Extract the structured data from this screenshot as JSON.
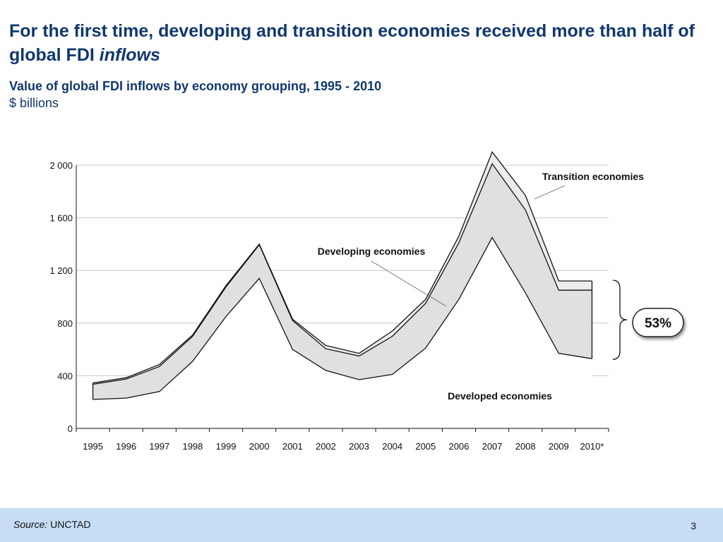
{
  "slide": {
    "title_main": "For the first time, developing and transition economies received more than half of global FDI ",
    "title_emph": "inflows",
    "subtitle": "Value of global FDI inflows by economy grouping, 1995 - 2010",
    "unit": "$ billions"
  },
  "footer": {
    "source_label": "Source:",
    "source_text": " UNCTAD",
    "page_number": "3"
  },
  "chart_data": {
    "type": "area",
    "stacked": true,
    "categories": [
      "1995",
      "1996",
      "1997",
      "1998",
      "1999",
      "2000",
      "2001",
      "2002",
      "2003",
      "2004",
      "2005",
      "2006",
      "2007",
      "2008",
      "2009",
      "2010*"
    ],
    "ylim": [
      0,
      2000
    ],
    "yticks": [
      0,
      400,
      800,
      1200,
      1600,
      2000
    ],
    "ytick_labels": [
      "0",
      "400",
      "800",
      "1 200",
      "1 600",
      "2 000"
    ],
    "grid": true,
    "series": [
      {
        "name": "Developed economies",
        "values": [
          220,
          230,
          280,
          510,
          850,
          1140,
          600,
          440,
          370,
          410,
          610,
          980,
          1450,
          1030,
          570,
          530
        ],
        "color": "#ffffff"
      },
      {
        "name": "Developing economies",
        "values": [
          115,
          145,
          190,
          190,
          225,
          255,
          220,
          165,
          180,
          290,
          340,
          430,
          560,
          630,
          480,
          520
        ],
        "color": "#e0e0e0"
      },
      {
        "name": "Transition economies",
        "values": [
          10,
          10,
          15,
          10,
          10,
          5,
          10,
          25,
          20,
          40,
          30,
          50,
          90,
          110,
          70,
          70
        ],
        "color": "#ececec"
      }
    ],
    "annotations": [
      {
        "text": "Developing economies"
      },
      {
        "text": "Transition economies"
      },
      {
        "text": "Developed economies"
      }
    ],
    "callout": {
      "text": "53%"
    }
  }
}
